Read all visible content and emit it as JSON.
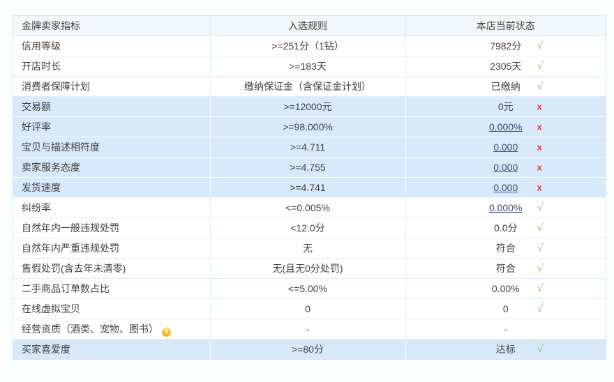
{
  "table": {
    "headers": [
      "金牌卖家指标",
      "入选规则",
      "本店当前状态"
    ],
    "rows": [
      {
        "indicator": "信用等级",
        "rule": ">=251分（1钻）",
        "status": "7982分",
        "mark": "pass",
        "highlight": false,
        "status_link": false,
        "help": false
      },
      {
        "indicator": "开店时长",
        "rule": ">=183天",
        "status": "2305天",
        "mark": "pass",
        "highlight": false,
        "status_link": false,
        "help": false
      },
      {
        "indicator": "消费者保障计划",
        "rule": "缴纳保证金（含保证金计划）",
        "status": "已缴纳",
        "mark": "pass",
        "highlight": false,
        "status_link": false,
        "help": false
      },
      {
        "indicator": "交易额",
        "rule": ">=12000元",
        "status": "0元",
        "mark": "fail",
        "highlight": true,
        "status_link": false,
        "help": false
      },
      {
        "indicator": "好评率",
        "rule": ">=98.000%",
        "status": "0.000%",
        "mark": "fail",
        "highlight": true,
        "status_link": true,
        "help": false
      },
      {
        "indicator": "宝贝与描述相符度",
        "rule": ">=4.711",
        "status": "0.000",
        "mark": "fail",
        "highlight": true,
        "status_link": true,
        "help": false
      },
      {
        "indicator": "卖家服务态度",
        "rule": ">=4.755",
        "status": "0.000",
        "mark": "fail",
        "highlight": true,
        "status_link": true,
        "help": false
      },
      {
        "indicator": "发货速度",
        "rule": ">=4.741",
        "status": "0.000",
        "mark": "fail",
        "highlight": true,
        "status_link": true,
        "help": false
      },
      {
        "indicator": "纠纷率",
        "rule": "<=0.005%",
        "status": "0.000%",
        "mark": "pass",
        "highlight": false,
        "status_link": true,
        "help": false
      },
      {
        "indicator": "自然年内一般违规处罚",
        "rule": "<12.0分",
        "status": "0.0分",
        "mark": "pass",
        "highlight": false,
        "status_link": false,
        "help": false
      },
      {
        "indicator": "自然年内严重违规处罚",
        "rule": "无",
        "status": "符合",
        "mark": "pass",
        "highlight": false,
        "status_link": false,
        "help": false
      },
      {
        "indicator": "售假处罚(含去年未清零)",
        "rule": "无(且无0分处罚)",
        "status": "符合",
        "mark": "pass",
        "highlight": false,
        "status_link": false,
        "help": false
      },
      {
        "indicator": "二手商品订单数占比",
        "rule": "<=5.00%",
        "status": "0.00%",
        "mark": "pass",
        "highlight": false,
        "status_link": false,
        "help": false
      },
      {
        "indicator": "在线虚拟宝贝",
        "rule": "0",
        "status": "0",
        "mark": "pass",
        "highlight": false,
        "status_link": false,
        "help": false
      },
      {
        "indicator": "经营资质（酒类、宠物、图书）",
        "rule": "-",
        "status": "-",
        "mark": "none",
        "highlight": false,
        "status_link": false,
        "help": true
      },
      {
        "indicator": "买家喜爱度",
        "rule": ">=80分",
        "status": "达标",
        "mark": "pass",
        "highlight": true,
        "status_link": false,
        "help": false
      }
    ]
  },
  "icons": {
    "check": "√",
    "cross": "x",
    "help": "?"
  },
  "colors": {
    "pass_green": "#8ac47c",
    "fail_red": "#e4393c",
    "highlight_row": "#d8eafa",
    "header_bg": "#f2f7fb",
    "border": "#dfecf7",
    "link_text": "#374b73",
    "help_icon_bg": "#f7a521"
  }
}
